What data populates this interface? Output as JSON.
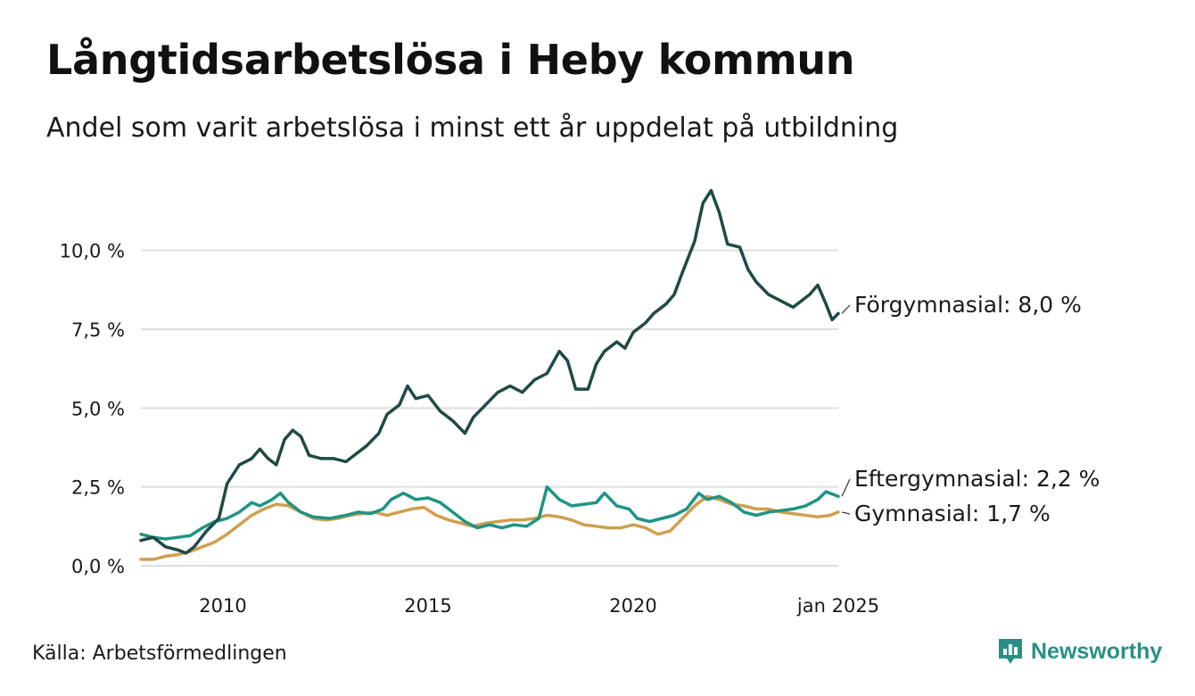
{
  "header": {
    "title": "Långtidsarbetslösa i Heby kommun",
    "subtitle": "Andel som varit arbetslösa i minst ett år uppdelat på utbildning"
  },
  "footer": {
    "source": "Källa: Arbetsförmedlingen",
    "brand": "Newsworthy"
  },
  "colors": {
    "forgymnasial": "#1f4a45",
    "eftergymnasial": "#1e9484",
    "gymnasial": "#cf9f4f",
    "grid": "#dedede",
    "brand": "#2a8f83"
  },
  "chart_data": {
    "type": "line",
    "x_axis": {
      "range": [
        2008.0,
        2025.0
      ],
      "ticks": [
        2010,
        2015,
        2020,
        2025
      ],
      "tick_labels": [
        "2010",
        "2015",
        "2020",
        "jan 2025"
      ]
    },
    "y_axis": {
      "range": [
        0,
        12
      ],
      "ticks": [
        0,
        2.5,
        5,
        7.5,
        10
      ],
      "tick_labels": [
        "0,0 %",
        "2,5 %",
        "5,0 %",
        "7,5 %",
        "10,0 %"
      ]
    },
    "grid": true,
    "series": [
      {
        "name": "Förgymnasial",
        "color_key": "forgymnasial",
        "end_label": "Förgymnasial: 8,0 %",
        "points": [
          [
            2008.0,
            0.8
          ],
          [
            2008.3,
            0.9
          ],
          [
            2008.6,
            0.6
          ],
          [
            2008.9,
            0.5
          ],
          [
            2009.1,
            0.4
          ],
          [
            2009.3,
            0.6
          ],
          [
            2009.6,
            1.1
          ],
          [
            2009.9,
            1.5
          ],
          [
            2010.1,
            2.6
          ],
          [
            2010.4,
            3.2
          ],
          [
            2010.7,
            3.4
          ],
          [
            2010.9,
            3.7
          ],
          [
            2011.1,
            3.4
          ],
          [
            2011.3,
            3.2
          ],
          [
            2011.5,
            4.0
          ],
          [
            2011.7,
            4.3
          ],
          [
            2011.9,
            4.1
          ],
          [
            2012.1,
            3.5
          ],
          [
            2012.4,
            3.4
          ],
          [
            2012.7,
            3.4
          ],
          [
            2013.0,
            3.3
          ],
          [
            2013.2,
            3.5
          ],
          [
            2013.5,
            3.8
          ],
          [
            2013.8,
            4.2
          ],
          [
            2014.0,
            4.8
          ],
          [
            2014.3,
            5.1
          ],
          [
            2014.5,
            5.7
          ],
          [
            2014.7,
            5.3
          ],
          [
            2015.0,
            5.4
          ],
          [
            2015.3,
            4.9
          ],
          [
            2015.6,
            4.6
          ],
          [
            2015.9,
            4.2
          ],
          [
            2016.1,
            4.7
          ],
          [
            2016.4,
            5.1
          ],
          [
            2016.7,
            5.5
          ],
          [
            2017.0,
            5.7
          ],
          [
            2017.3,
            5.5
          ],
          [
            2017.6,
            5.9
          ],
          [
            2017.9,
            6.1
          ],
          [
            2018.2,
            6.8
          ],
          [
            2018.4,
            6.5
          ],
          [
            2018.6,
            5.6
          ],
          [
            2018.9,
            5.6
          ],
          [
            2019.1,
            6.4
          ],
          [
            2019.3,
            6.8
          ],
          [
            2019.6,
            7.1
          ],
          [
            2019.8,
            6.9
          ],
          [
            2020.0,
            7.4
          ],
          [
            2020.3,
            7.7
          ],
          [
            2020.5,
            8.0
          ],
          [
            2020.8,
            8.3
          ],
          [
            2021.0,
            8.6
          ],
          [
            2021.2,
            9.3
          ],
          [
            2021.5,
            10.3
          ],
          [
            2021.7,
            11.5
          ],
          [
            2021.9,
            11.9
          ],
          [
            2022.1,
            11.2
          ],
          [
            2022.3,
            10.2
          ],
          [
            2022.6,
            10.1
          ],
          [
            2022.8,
            9.4
          ],
          [
            2023.0,
            9.0
          ],
          [
            2023.3,
            8.6
          ],
          [
            2023.6,
            8.4
          ],
          [
            2023.9,
            8.2
          ],
          [
            2024.1,
            8.4
          ],
          [
            2024.3,
            8.6
          ],
          [
            2024.5,
            8.9
          ],
          [
            2024.7,
            8.3
          ],
          [
            2024.85,
            7.8
          ],
          [
            2025.0,
            8.0
          ]
        ]
      },
      {
        "name": "Eftergymnasial",
        "color_key": "eftergymnasial",
        "end_label": "Eftergymnasial: 2,2 %",
        "points": [
          [
            2008.0,
            1.0
          ],
          [
            2008.3,
            0.9
          ],
          [
            2008.6,
            0.85
          ],
          [
            2008.9,
            0.9
          ],
          [
            2009.2,
            0.95
          ],
          [
            2009.5,
            1.2
          ],
          [
            2009.8,
            1.4
          ],
          [
            2010.1,
            1.5
          ],
          [
            2010.4,
            1.7
          ],
          [
            2010.7,
            2.0
          ],
          [
            2010.9,
            1.9
          ],
          [
            2011.2,
            2.1
          ],
          [
            2011.4,
            2.3
          ],
          [
            2011.6,
            2.0
          ],
          [
            2011.9,
            1.7
          ],
          [
            2012.2,
            1.55
          ],
          [
            2012.6,
            1.5
          ],
          [
            2013.0,
            1.6
          ],
          [
            2013.3,
            1.7
          ],
          [
            2013.6,
            1.65
          ],
          [
            2013.9,
            1.8
          ],
          [
            2014.1,
            2.1
          ],
          [
            2014.4,
            2.3
          ],
          [
            2014.7,
            2.1
          ],
          [
            2015.0,
            2.15
          ],
          [
            2015.3,
            2.0
          ],
          [
            2015.6,
            1.7
          ],
          [
            2015.9,
            1.4
          ],
          [
            2016.2,
            1.2
          ],
          [
            2016.5,
            1.3
          ],
          [
            2016.8,
            1.2
          ],
          [
            2017.1,
            1.3
          ],
          [
            2017.4,
            1.25
          ],
          [
            2017.7,
            1.5
          ],
          [
            2017.9,
            2.5
          ],
          [
            2018.2,
            2.1
          ],
          [
            2018.5,
            1.9
          ],
          [
            2018.8,
            1.95
          ],
          [
            2019.1,
            2.0
          ],
          [
            2019.3,
            2.3
          ],
          [
            2019.6,
            1.9
          ],
          [
            2019.9,
            1.8
          ],
          [
            2020.1,
            1.5
          ],
          [
            2020.4,
            1.4
          ],
          [
            2020.7,
            1.5
          ],
          [
            2021.0,
            1.6
          ],
          [
            2021.3,
            1.8
          ],
          [
            2021.6,
            2.3
          ],
          [
            2021.8,
            2.1
          ],
          [
            2022.1,
            2.2
          ],
          [
            2022.4,
            2.0
          ],
          [
            2022.7,
            1.7
          ],
          [
            2023.0,
            1.6
          ],
          [
            2023.3,
            1.7
          ],
          [
            2023.6,
            1.75
          ],
          [
            2023.9,
            1.8
          ],
          [
            2024.2,
            1.9
          ],
          [
            2024.5,
            2.1
          ],
          [
            2024.7,
            2.35
          ],
          [
            2025.0,
            2.2
          ]
        ]
      },
      {
        "name": "Gymnasial",
        "color_key": "gymnasial",
        "end_label": "Gymnasial: 1,7 %",
        "points": [
          [
            2008.0,
            0.2
          ],
          [
            2008.3,
            0.2
          ],
          [
            2008.6,
            0.3
          ],
          [
            2008.9,
            0.35
          ],
          [
            2009.2,
            0.45
          ],
          [
            2009.5,
            0.6
          ],
          [
            2009.8,
            0.75
          ],
          [
            2010.1,
            1.0
          ],
          [
            2010.4,
            1.3
          ],
          [
            2010.7,
            1.6
          ],
          [
            2011.0,
            1.8
          ],
          [
            2011.3,
            1.95
          ],
          [
            2011.6,
            1.9
          ],
          [
            2011.9,
            1.7
          ],
          [
            2012.2,
            1.5
          ],
          [
            2012.5,
            1.45
          ],
          [
            2012.8,
            1.5
          ],
          [
            2013.1,
            1.6
          ],
          [
            2013.4,
            1.65
          ],
          [
            2013.7,
            1.7
          ],
          [
            2014.0,
            1.6
          ],
          [
            2014.3,
            1.7
          ],
          [
            2014.6,
            1.8
          ],
          [
            2014.9,
            1.85
          ],
          [
            2015.2,
            1.6
          ],
          [
            2015.5,
            1.45
          ],
          [
            2015.8,
            1.35
          ],
          [
            2016.1,
            1.25
          ],
          [
            2016.4,
            1.35
          ],
          [
            2016.7,
            1.4
          ],
          [
            2017.0,
            1.45
          ],
          [
            2017.3,
            1.45
          ],
          [
            2017.6,
            1.5
          ],
          [
            2017.9,
            1.6
          ],
          [
            2018.2,
            1.55
          ],
          [
            2018.5,
            1.45
          ],
          [
            2018.8,
            1.3
          ],
          [
            2019.1,
            1.25
          ],
          [
            2019.4,
            1.2
          ],
          [
            2019.7,
            1.2
          ],
          [
            2020.0,
            1.3
          ],
          [
            2020.3,
            1.2
          ],
          [
            2020.6,
            1.0
          ],
          [
            2020.9,
            1.1
          ],
          [
            2021.2,
            1.5
          ],
          [
            2021.5,
            1.9
          ],
          [
            2021.8,
            2.2
          ],
          [
            2022.1,
            2.1
          ],
          [
            2022.4,
            1.95
          ],
          [
            2022.7,
            1.9
          ],
          [
            2023.0,
            1.8
          ],
          [
            2023.3,
            1.8
          ],
          [
            2023.6,
            1.7
          ],
          [
            2023.9,
            1.65
          ],
          [
            2024.2,
            1.6
          ],
          [
            2024.5,
            1.55
          ],
          [
            2024.8,
            1.6
          ],
          [
            2025.0,
            1.7
          ]
        ]
      }
    ]
  }
}
